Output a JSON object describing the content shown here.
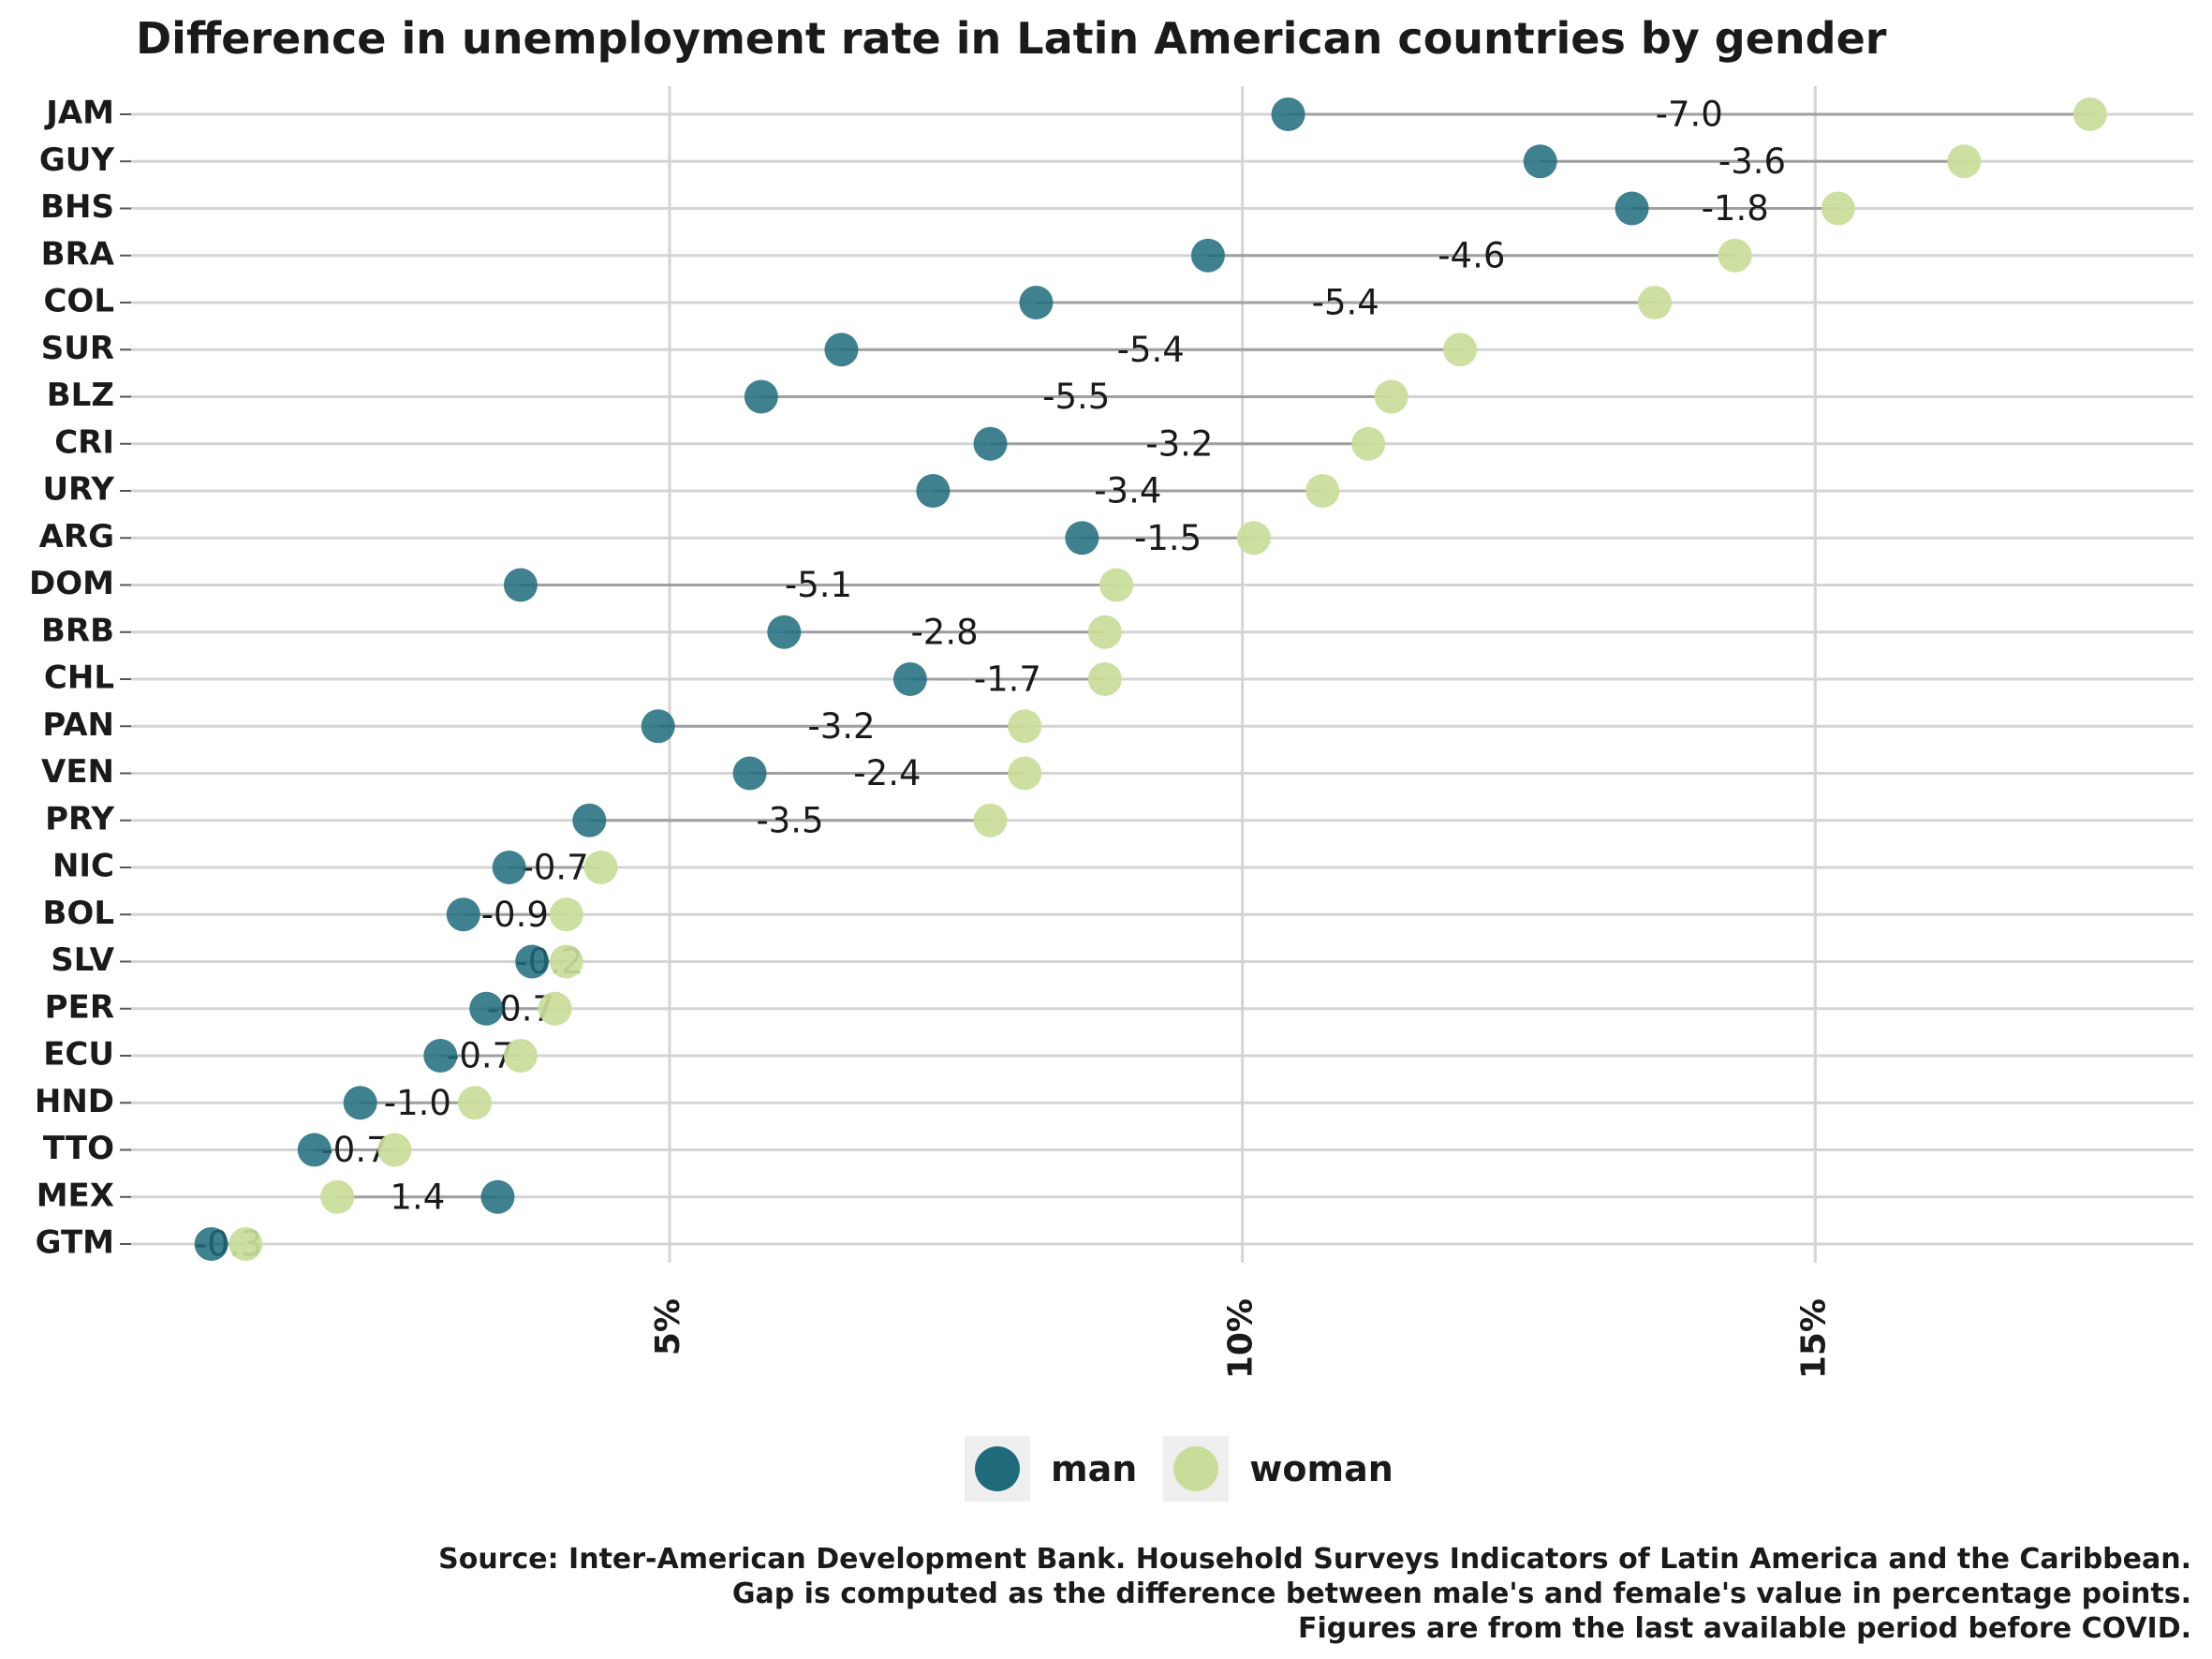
{
  "title": "Difference in unemployment rate in Latin American countries by gender",
  "legend": {
    "man_label": "man",
    "woman_label": "woman"
  },
  "colors": {
    "man": "#1f6b7c",
    "woman": "#c9dd9a",
    "segment": "#a0a0a0",
    "grid": "#d4d4d4"
  },
  "caption": [
    "Source: Inter-American Development Bank. Household Surveys Indicators of Latin America and the Caribbean.",
    "Gap is computed as the difference between male's and female's value in percentage points.",
    "Figures are from the last available period before COVID."
  ],
  "chart_data": {
    "type": "dumbbell",
    "title": "Difference in unemployment rate in Latin American countries by gender",
    "x_ticks": [
      {
        "value": 5,
        "label": "5%"
      },
      {
        "value": 10,
        "label": "10%"
      },
      {
        "value": 15,
        "label": "15%"
      }
    ],
    "xlim": [
      0.3,
      18.3
    ],
    "series": [
      {
        "name": "man",
        "color": "#1f6b7c"
      },
      {
        "name": "woman",
        "color": "#c9dd9a"
      }
    ],
    "rows": [
      {
        "country": "JAM",
        "man": 10.4,
        "woman": 17.4,
        "gap": "-7.0"
      },
      {
        "country": "GUY",
        "man": 12.6,
        "woman": 16.3,
        "gap": "-3.6"
      },
      {
        "country": "BHS",
        "man": 13.4,
        "woman": 15.2,
        "gap": "-1.8"
      },
      {
        "country": "BRA",
        "man": 9.7,
        "woman": 14.3,
        "gap": "-4.6"
      },
      {
        "country": "COL",
        "man": 8.2,
        "woman": 13.6,
        "gap": "-5.4"
      },
      {
        "country": "SUR",
        "man": 6.5,
        "woman": 11.9,
        "gap": "-5.4"
      },
      {
        "country": "BLZ",
        "man": 5.8,
        "woman": 11.3,
        "gap": "-5.5"
      },
      {
        "country": "CRI",
        "man": 7.8,
        "woman": 11.1,
        "gap": "-3.2"
      },
      {
        "country": "URY",
        "man": 7.3,
        "woman": 10.7,
        "gap": "-3.4"
      },
      {
        "country": "ARG",
        "man": 8.6,
        "woman": 10.1,
        "gap": "-1.5"
      },
      {
        "country": "DOM",
        "man": 3.7,
        "woman": 8.9,
        "gap": "-5.1"
      },
      {
        "country": "BRB",
        "man": 6.0,
        "woman": 8.8,
        "gap": "-2.8"
      },
      {
        "country": "CHL",
        "man": 7.1,
        "woman": 8.8,
        "gap": "-1.7"
      },
      {
        "country": "PAN",
        "man": 4.9,
        "woman": 8.1,
        "gap": "-3.2"
      },
      {
        "country": "VEN",
        "man": 5.7,
        "woman": 8.1,
        "gap": "-2.4"
      },
      {
        "country": "PRY",
        "man": 4.3,
        "woman": 7.8,
        "gap": "-3.5"
      },
      {
        "country": "NIC",
        "man": 3.6,
        "woman": 4.4,
        "gap": "-0.7"
      },
      {
        "country": "BOL",
        "man": 3.2,
        "woman": 4.1,
        "gap": "-0.9"
      },
      {
        "country": "SLV",
        "man": 3.8,
        "woman": 4.1,
        "gap": "-0.2"
      },
      {
        "country": "PER",
        "man": 3.4,
        "woman": 4.0,
        "gap": "-0.7"
      },
      {
        "country": "ECU",
        "man": 3.0,
        "woman": 3.7,
        "gap": "-0.7"
      },
      {
        "country": "HND",
        "man": 2.3,
        "woman": 3.3,
        "gap": "-1.0"
      },
      {
        "country": "TTO",
        "man": 1.9,
        "woman": 2.6,
        "gap": "-0.7"
      },
      {
        "country": "MEX",
        "man": 3.5,
        "woman": 2.1,
        "gap": "1.4"
      },
      {
        "country": "GTM",
        "man": 1.0,
        "woman": 1.3,
        "gap": "-0.3"
      }
    ]
  }
}
